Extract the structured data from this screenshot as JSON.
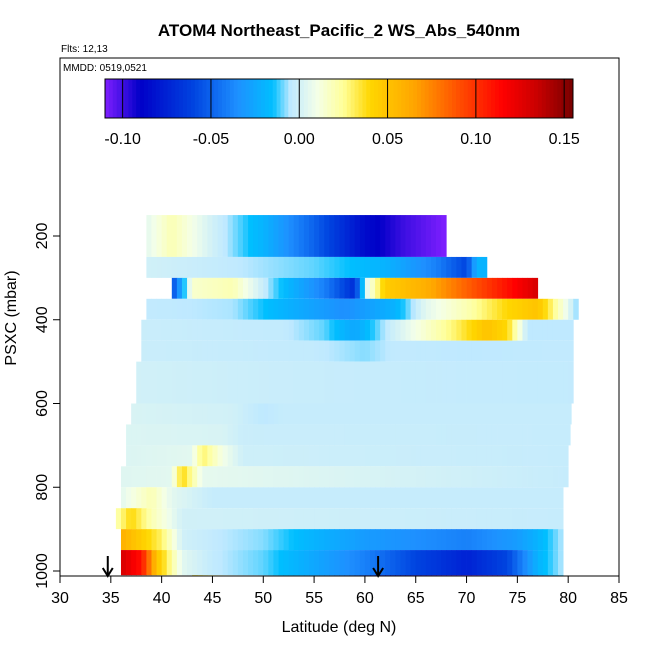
{
  "chart_data": {
    "type": "heatmap",
    "title": "ATOM4 Northeast_Pacific_2 WS_Abs_540nm",
    "annotations": {
      "flights": "Flts: 12,13",
      "dates": "MMDD: 0519,0521"
    },
    "xlabel": "Latitude (deg N)",
    "ylabel": "PSXC (mbar)",
    "xlim": [
      30,
      85
    ],
    "ylim": [
      1000,
      100
    ],
    "xticks": [
      30,
      35,
      40,
      45,
      50,
      55,
      60,
      65,
      70,
      75,
      80,
      85
    ],
    "yticks": [
      200,
      400,
      600,
      800,
      1000
    ],
    "colorbar": {
      "range": [
        -0.11,
        0.155
      ],
      "ticks": [
        -0.1,
        -0.05,
        0.0,
        0.05,
        0.1,
        0.15
      ],
      "tick_labels": [
        "-0.10",
        "-0.05",
        "0.00",
        "0.05",
        "0.10",
        "0.15"
      ],
      "stops": [
        {
          "v": -0.11,
          "c": "#7f1fff"
        },
        {
          "v": -0.09,
          "c": "#0000c8"
        },
        {
          "v": -0.06,
          "c": "#0044e0"
        },
        {
          "v": -0.035,
          "c": "#1e90ff"
        },
        {
          "v": -0.015,
          "c": "#00bfff"
        },
        {
          "v": -0.005,
          "c": "#bfe9ff"
        },
        {
          "v": 0.01,
          "c": "#f4ffe8"
        },
        {
          "v": 0.025,
          "c": "#ffff99"
        },
        {
          "v": 0.04,
          "c": "#ffd700"
        },
        {
          "v": 0.065,
          "c": "#ffa500"
        },
        {
          "v": 0.09,
          "c": "#ff5000"
        },
        {
          "v": 0.115,
          "c": "#ff0000"
        },
        {
          "v": 0.135,
          "c": "#c80000"
        },
        {
          "v": 0.155,
          "c": "#780000"
        }
      ]
    },
    "markers": [
      {
        "lat": 34.7,
        "label": "down-arrow"
      },
      {
        "lat": 61.3,
        "label": "down-arrow"
      }
    ],
    "rows": [
      {
        "p1": 150,
        "p2": 250,
        "lat1": 38.5,
        "lat2": 68,
        "kn": [
          [
            38.5,
            0.005
          ],
          [
            41,
            0.02
          ],
          [
            45,
            0.0
          ],
          [
            50,
            -0.02
          ],
          [
            55,
            -0.05
          ],
          [
            60,
            -0.085
          ],
          [
            64,
            -0.1
          ],
          [
            68,
            -0.11
          ]
        ]
      },
      {
        "p1": 250,
        "p2": 300,
        "lat1": 38.5,
        "lat2": 72,
        "kn": [
          [
            38.5,
            0.0
          ],
          [
            45,
            -0.003
          ],
          [
            55,
            -0.01
          ],
          [
            62,
            -0.02
          ],
          [
            67,
            -0.04
          ],
          [
            70,
            -0.06
          ],
          [
            71,
            -0.02
          ],
          [
            72,
            -0.02
          ]
        ]
      },
      {
        "p1": 300,
        "p2": 350,
        "lat1": 41,
        "lat2": 77,
        "kn": [
          [
            41,
            -0.06
          ],
          [
            43,
            0.015
          ],
          [
            47,
            0.02
          ],
          [
            51,
            -0.01
          ],
          [
            56,
            -0.04
          ],
          [
            59,
            -0.07
          ],
          [
            60,
            0.0
          ],
          [
            62,
            0.045
          ],
          [
            66,
            0.06
          ],
          [
            70,
            0.085
          ],
          [
            74,
            0.11
          ],
          [
            77,
            0.13
          ]
        ]
      },
      {
        "p1": 350,
        "p2": 400,
        "lat1": 38.5,
        "lat2": 81,
        "kn": [
          [
            38.5,
            -0.004
          ],
          [
            47,
            -0.006
          ],
          [
            52,
            -0.02
          ],
          [
            58,
            -0.035
          ],
          [
            63,
            -0.02
          ],
          [
            66,
            0.005
          ],
          [
            70,
            0.02
          ],
          [
            74,
            0.04
          ],
          [
            77,
            0.05
          ],
          [
            79,
            0.02
          ],
          [
            81,
            -0.01
          ]
        ]
      },
      {
        "p1": 400,
        "p2": 450,
        "lat1": 38,
        "lat2": 80.5,
        "kn": [
          [
            38,
            -0.002
          ],
          [
            52,
            -0.004
          ],
          [
            56,
            -0.01
          ],
          [
            59,
            -0.025
          ],
          [
            62,
            -0.005
          ],
          [
            65,
            0.01
          ],
          [
            69,
            0.03
          ],
          [
            72,
            0.05
          ],
          [
            74,
            0.04
          ],
          [
            76,
            -0.005
          ],
          [
            80.5,
            -0.005
          ]
        ]
      },
      {
        "p1": 450,
        "p2": 500,
        "lat1": 38,
        "lat2": 80.5,
        "kn": [
          [
            38,
            -0.002
          ],
          [
            55,
            -0.004
          ],
          [
            60,
            -0.008
          ],
          [
            63,
            -0.004
          ],
          [
            70,
            -0.005
          ],
          [
            80.5,
            -0.004
          ]
        ]
      },
      {
        "p1": 500,
        "p2": 600,
        "lat1": 37.5,
        "lat2": 80.5,
        "kn": [
          [
            37.5,
            0.0
          ],
          [
            50,
            -0.002
          ],
          [
            60,
            -0.003
          ],
          [
            80.5,
            -0.004
          ]
        ]
      },
      {
        "p1": 600,
        "p2": 650,
        "lat1": 37,
        "lat2": 80.3,
        "kn": [
          [
            37,
            0.002
          ],
          [
            47,
            0.0
          ],
          [
            50,
            -0.005
          ],
          [
            52,
            -0.003
          ],
          [
            80.3,
            -0.003
          ]
        ]
      },
      {
        "p1": 650,
        "p2": 700,
        "lat1": 36.5,
        "lat2": 80.2,
        "kn": [
          [
            36.5,
            0.003
          ],
          [
            46,
            0.002
          ],
          [
            48,
            -0.002
          ],
          [
            80.2,
            -0.003
          ]
        ]
      },
      {
        "p1": 700,
        "p2": 750,
        "lat1": 36.5,
        "lat2": 80,
        "kn": [
          [
            36.5,
            0.003
          ],
          [
            43,
            0.005
          ],
          [
            44,
            0.03
          ],
          [
            46,
            0.01
          ],
          [
            48,
            -0.001
          ],
          [
            80,
            -0.003
          ]
        ]
      },
      {
        "p1": 750,
        "p2": 800,
        "lat1": 36,
        "lat2": 80,
        "kn": [
          [
            36,
            0.004
          ],
          [
            41,
            0.005
          ],
          [
            42,
            0.04
          ],
          [
            44,
            0.006
          ],
          [
            80,
            -0.003
          ]
        ]
      },
      {
        "p1": 800,
        "p2": 850,
        "lat1": 36,
        "lat2": 79.5,
        "kn": [
          [
            36,
            0.005
          ],
          [
            39,
            0.02
          ],
          [
            41,
            0.005
          ],
          [
            45,
            -0.003
          ],
          [
            79.5,
            -0.003
          ]
        ]
      },
      {
        "p1": 850,
        "p2": 900,
        "lat1": 35.5,
        "lat2": 79.5,
        "kn": [
          [
            35.5,
            0.02
          ],
          [
            37,
            0.04
          ],
          [
            39,
            0.02
          ],
          [
            42,
            0.0
          ],
          [
            79.5,
            -0.003
          ]
        ]
      },
      {
        "p1": 900,
        "p2": 950,
        "lat1": 36,
        "lat2": 79.5,
        "kn": [
          [
            36,
            0.06
          ],
          [
            38,
            0.045
          ],
          [
            40,
            0.03
          ],
          [
            42,
            0.0
          ],
          [
            46,
            -0.005
          ],
          [
            50,
            -0.008
          ],
          [
            55,
            -0.02
          ],
          [
            60,
            -0.03
          ],
          [
            65,
            -0.035
          ],
          [
            70,
            -0.04
          ],
          [
            75,
            -0.03
          ],
          [
            77,
            -0.02
          ],
          [
            79.5,
            -0.005
          ]
        ]
      },
      {
        "p1": 950,
        "p2": 1010,
        "lat1": 36,
        "lat2": 79.5,
        "kn": [
          [
            36,
            0.13
          ],
          [
            38,
            0.11
          ],
          [
            39.5,
            0.05
          ],
          [
            42,
            0.005
          ],
          [
            45,
            -0.004
          ],
          [
            50,
            -0.01
          ],
          [
            55,
            -0.025
          ],
          [
            60,
            -0.04
          ],
          [
            65,
            -0.06
          ],
          [
            70,
            -0.075
          ],
          [
            74,
            -0.06
          ],
          [
            77,
            -0.02
          ],
          [
            79.5,
            -0.005
          ]
        ]
      },
      {
        "p1": 1010,
        "p2": 1070,
        "lat1": 43,
        "lat2": 79.5,
        "kn": [
          [
            43,
            0.04
          ],
          [
            45,
            0.02
          ],
          [
            48,
            0.0
          ],
          [
            52,
            -0.015
          ],
          [
            56,
            -0.03
          ],
          [
            59,
            -0.05
          ],
          [
            61,
            -0.08
          ],
          [
            64,
            -0.09
          ],
          [
            68,
            -0.1
          ],
          [
            71,
            -0.105
          ],
          [
            74,
            -0.1
          ],
          [
            77,
            -0.04
          ],
          [
            79.5,
            -0.01
          ]
        ]
      }
    ]
  }
}
